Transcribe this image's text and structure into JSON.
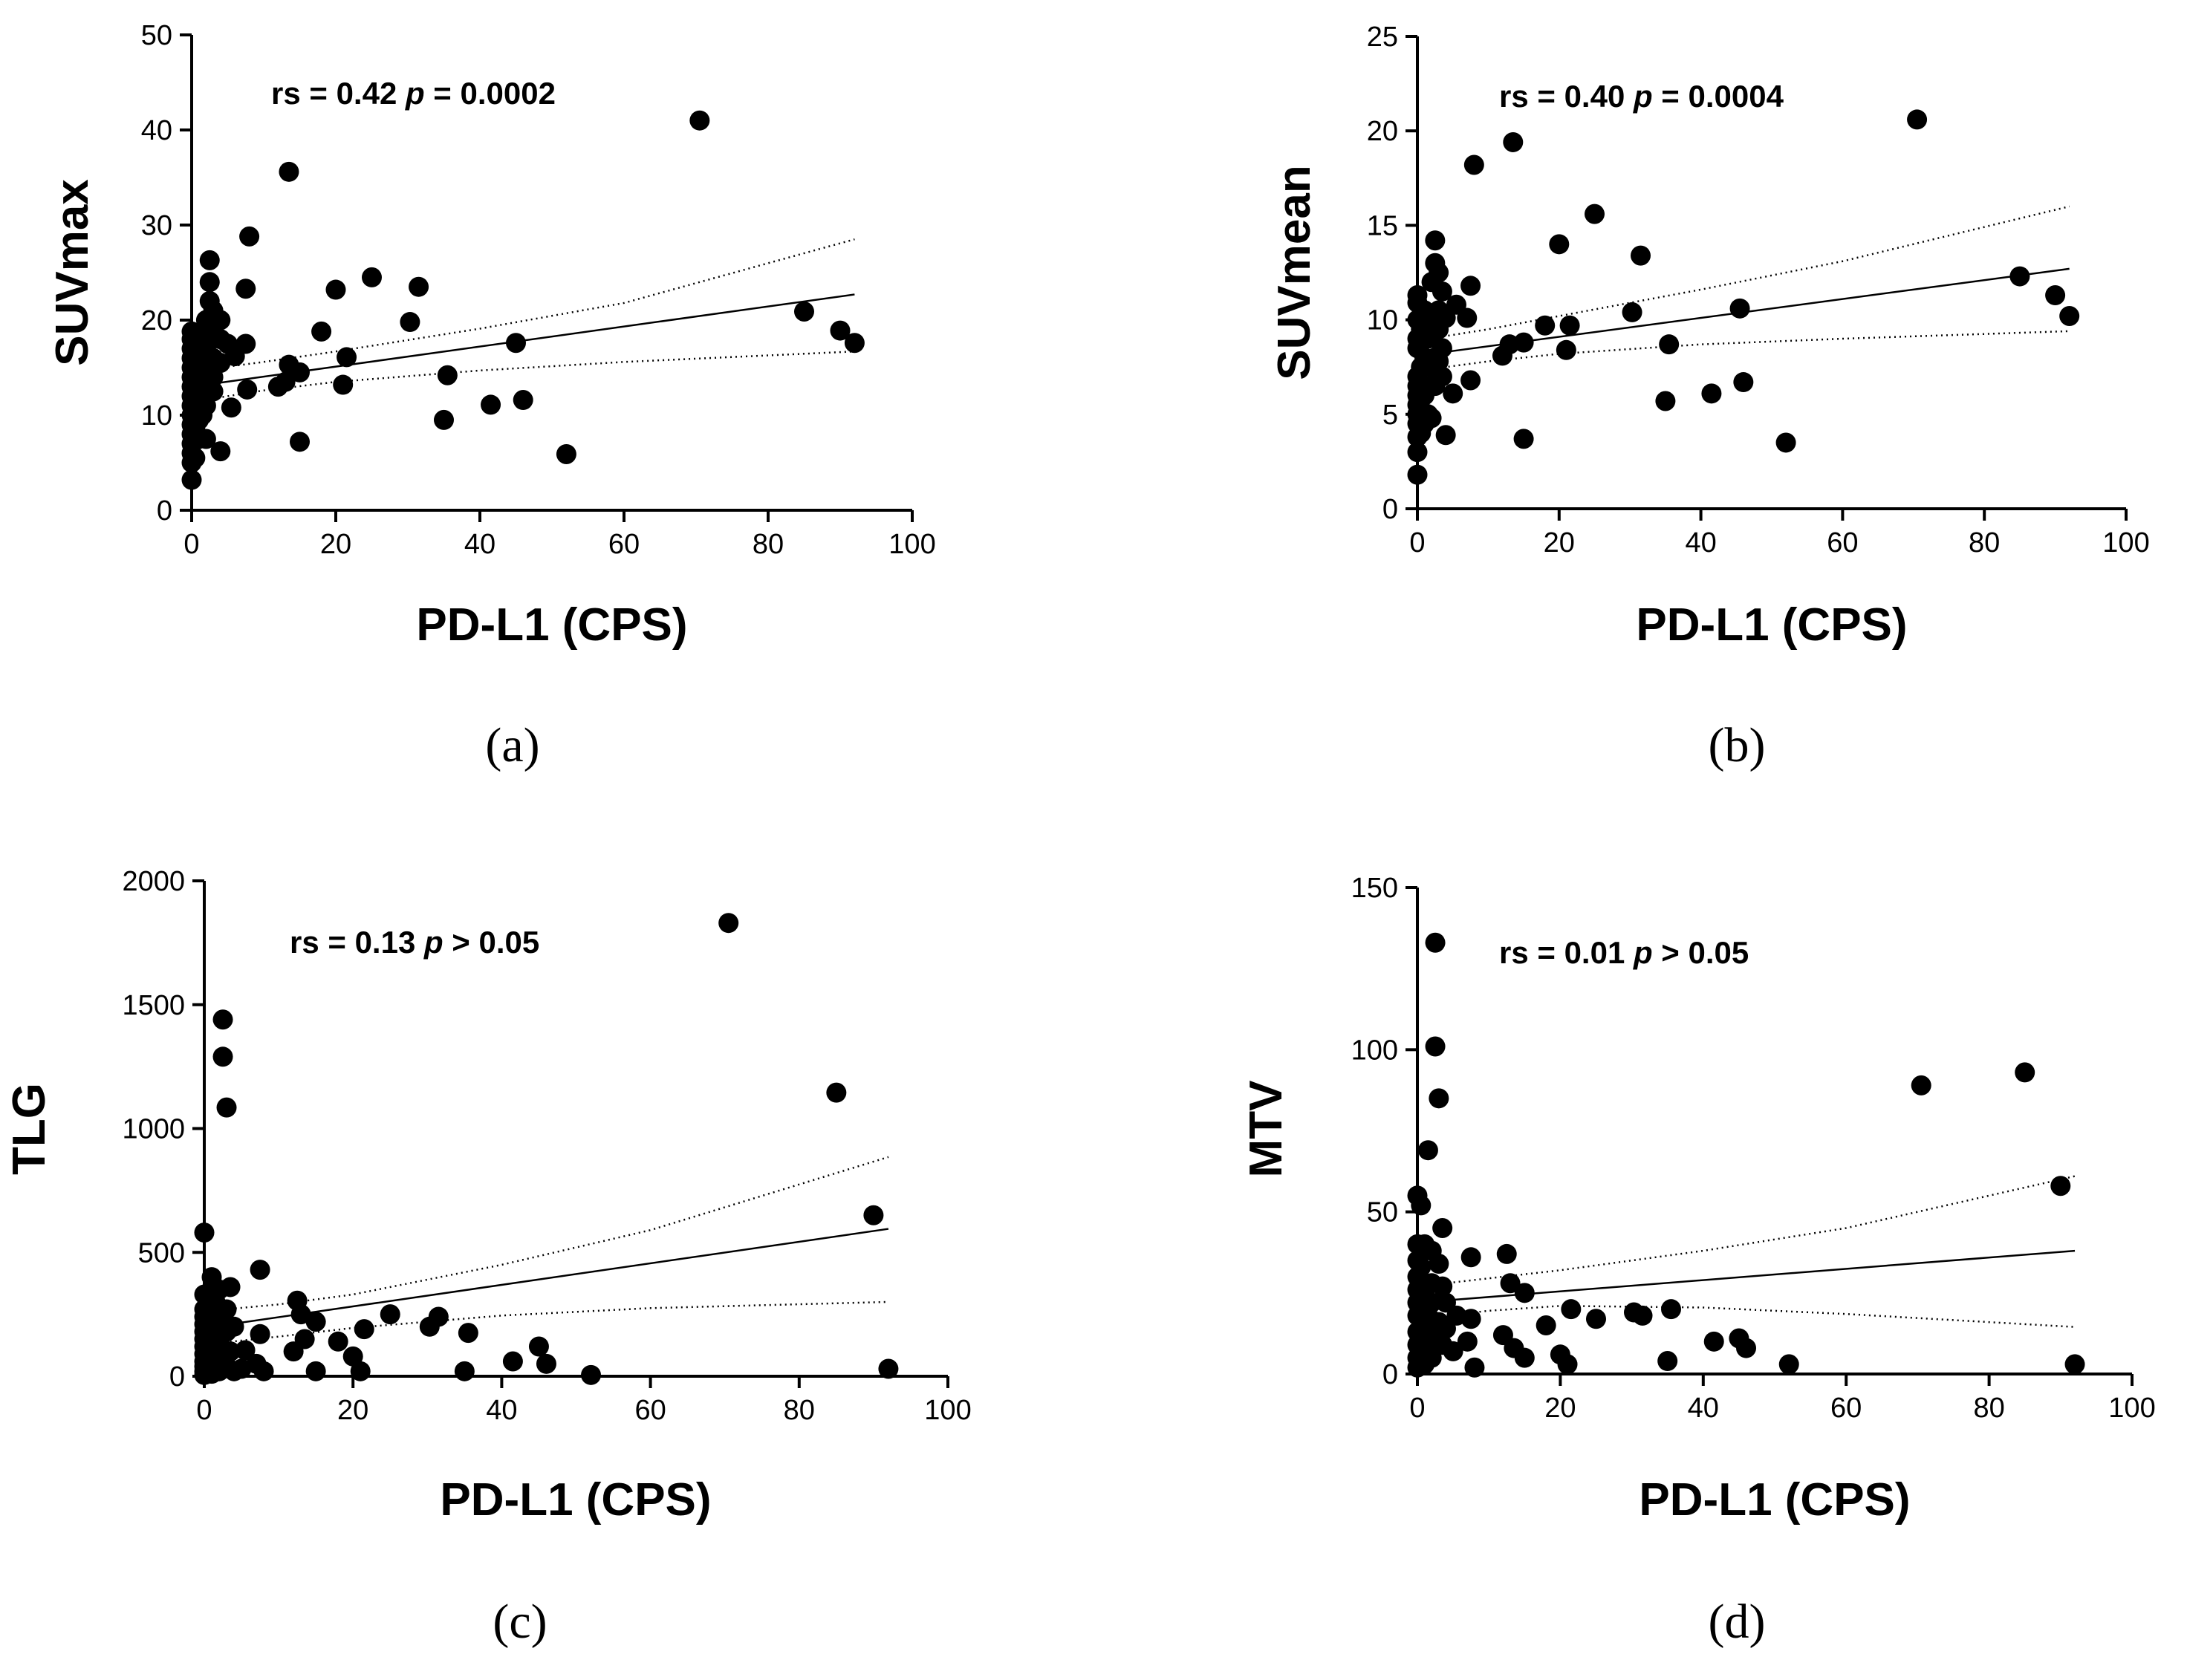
{
  "chart_data": [
    {
      "type": "scatter",
      "panel_label": "(a)",
      "xlabel": "PD-L1 (CPS)",
      "ylabel": "SUVmax",
      "xlim": [
        0,
        100
      ],
      "ylim": [
        0,
        50
      ],
      "xticks": [
        "0",
        "20",
        "40",
        "60",
        "80",
        "100"
      ],
      "yticks": [
        "0",
        "10",
        "20",
        "30",
        "40",
        "50"
      ],
      "stat": {
        "prefix": "rs = 0.42 ",
        "p_symbol": "p",
        "suffix": " = 0.0002"
      },
      "fit": {
        "x": [
          0,
          92
        ],
        "y": [
          13.0,
          22.7
        ]
      },
      "ci_upper": {
        "x": [
          0,
          10,
          20,
          40,
          60,
          92
        ],
        "y": [
          14.6,
          15.6,
          16.7,
          19.1,
          21.8,
          28.5
        ]
      },
      "ci_lower": {
        "x": [
          0,
          10,
          20,
          40,
          60,
          92
        ],
        "y": [
          11.4,
          12.6,
          13.5,
          14.7,
          15.6,
          16.7
        ]
      },
      "points": [
        [
          0,
          3.2
        ],
        [
          0,
          5.0
        ],
        [
          0,
          6.0
        ],
        [
          0,
          7.0
        ],
        [
          0,
          8.0
        ],
        [
          0,
          9.0
        ],
        [
          0,
          10.0
        ],
        [
          0,
          11.0
        ],
        [
          0,
          12.0
        ],
        [
          0,
          13.0
        ],
        [
          0,
          14.0
        ],
        [
          0,
          15.0
        ],
        [
          0,
          16.0
        ],
        [
          0,
          17.0
        ],
        [
          0,
          18.0
        ],
        [
          0,
          18.8
        ],
        [
          0.5,
          5.5
        ],
        [
          0.5,
          8.5
        ],
        [
          0.5,
          10.5
        ],
        [
          0.5,
          12.5
        ],
        [
          0.5,
          14.5
        ],
        [
          0.5,
          16.5
        ],
        [
          1,
          7.5
        ],
        [
          1,
          9.5
        ],
        [
          1,
          11.5
        ],
        [
          1,
          13.5
        ],
        [
          1,
          15.5
        ],
        [
          1,
          17.5
        ],
        [
          1.5,
          12.0
        ],
        [
          1.5,
          14.0
        ],
        [
          1.5,
          10.0
        ],
        [
          2,
          7.5
        ],
        [
          2,
          11.0
        ],
        [
          2,
          13.0
        ],
        [
          2,
          15.0
        ],
        [
          2,
          17.0
        ],
        [
          2,
          18.5
        ],
        [
          2,
          20.0
        ],
        [
          2.5,
          22.0
        ],
        [
          2.5,
          24.0
        ],
        [
          2.5,
          26.3
        ],
        [
          3,
          12.5
        ],
        [
          3,
          16.0
        ],
        [
          3,
          19.0
        ],
        [
          3,
          21.0
        ],
        [
          3,
          14.0
        ],
        [
          4,
          6.2
        ],
        [
          4,
          18.0
        ],
        [
          4,
          15.5
        ],
        [
          4,
          20.0
        ],
        [
          5,
          17.5
        ],
        [
          5.5,
          10.8
        ],
        [
          6,
          16.2
        ],
        [
          7.5,
          17.5
        ],
        [
          7.5,
          23.3
        ],
        [
          7.7,
          12.7
        ],
        [
          8,
          28.8
        ],
        [
          12,
          13.0
        ],
        [
          13,
          13.5
        ],
        [
          13.5,
          35.6
        ],
        [
          13.5,
          15.3
        ],
        [
          15,
          14.5
        ],
        [
          15,
          7.2
        ],
        [
          18,
          18.8
        ],
        [
          20,
          23.2
        ],
        [
          21,
          13.2
        ],
        [
          21.5,
          16.1
        ],
        [
          25,
          24.5
        ],
        [
          30.3,
          19.8
        ],
        [
          31.5,
          23.5
        ],
        [
          35,
          9.5
        ],
        [
          35.5,
          14.2
        ],
        [
          41.5,
          11.1
        ],
        [
          45,
          17.6
        ],
        [
          46,
          11.6
        ],
        [
          52,
          5.9
        ],
        [
          70.5,
          41.0
        ],
        [
          85,
          20.9
        ],
        [
          90,
          18.9
        ],
        [
          92,
          17.6
        ]
      ]
    },
    {
      "type": "scatter",
      "panel_label": "(b)",
      "xlabel": "PD-L1 (CPS)",
      "ylabel": "SUVmean",
      "xlim": [
        0,
        100
      ],
      "ylim": [
        0,
        25
      ],
      "xticks": [
        "0",
        "20",
        "40",
        "60",
        "80",
        "100"
      ],
      "yticks": [
        "0",
        "5",
        "10",
        "15",
        "20",
        "25"
      ],
      "stat": {
        "prefix": "rs = 0.40 ",
        "p_symbol": "p",
        "suffix": " = 0.0004"
      },
      "fit": {
        "x": [
          0,
          92
        ],
        "y": [
          8.1,
          12.7
        ]
      },
      "ci_upper": {
        "x": [
          0,
          10,
          20,
          40,
          60,
          92
        ],
        "y": [
          8.9,
          9.5,
          10.2,
          11.6,
          13.1,
          16.0
        ]
      },
      "ci_lower": {
        "x": [
          0,
          10,
          20,
          40,
          60,
          92
        ],
        "y": [
          7.3,
          7.8,
          8.2,
          8.7,
          9.0,
          9.4
        ]
      },
      "points": [
        [
          0,
          1.8
        ],
        [
          0,
          3.0
        ],
        [
          0,
          3.8
        ],
        [
          0,
          4.5
        ],
        [
          0,
          5.0
        ],
        [
          0,
          5.5
        ],
        [
          0,
          6.0
        ],
        [
          0,
          6.5
        ],
        [
          0,
          7.0
        ],
        [
          0,
          8.5
        ],
        [
          0,
          9.0
        ],
        [
          0,
          10.0
        ],
        [
          0,
          10.9
        ],
        [
          0,
          11.3
        ],
        [
          0.5,
          4.0
        ],
        [
          0.5,
          5.8
        ],
        [
          0.5,
          7.5
        ],
        [
          0.5,
          9.5
        ],
        [
          1,
          4.5
        ],
        [
          1,
          6.0
        ],
        [
          1,
          8.0
        ],
        [
          1,
          10.5
        ],
        [
          1.5,
          5.0
        ],
        [
          1.5,
          6.5
        ],
        [
          1.5,
          9.0
        ],
        [
          2,
          4.8
        ],
        [
          2,
          7.5
        ],
        [
          2,
          10.0
        ],
        [
          2,
          12.0
        ],
        [
          2.5,
          13.0
        ],
        [
          2.5,
          14.2
        ],
        [
          2.5,
          6.5
        ],
        [
          2.5,
          8.0
        ],
        [
          3,
          9.5
        ],
        [
          3,
          12.5
        ],
        [
          3,
          10.5
        ],
        [
          3,
          7.8
        ],
        [
          3.5,
          11.5
        ],
        [
          3.5,
          8.5
        ],
        [
          3.5,
          7.0
        ],
        [
          4,
          3.9
        ],
        [
          4,
          10.1
        ],
        [
          5,
          6.1
        ],
        [
          5.5,
          10.8
        ],
        [
          7,
          10.1
        ],
        [
          7.5,
          6.8
        ],
        [
          7.5,
          11.8
        ],
        [
          8,
          18.2
        ],
        [
          12,
          8.1
        ],
        [
          13,
          8.7
        ],
        [
          13.5,
          19.4
        ],
        [
          15,
          8.8
        ],
        [
          15,
          3.7
        ],
        [
          18,
          9.7
        ],
        [
          20,
          14.0
        ],
        [
          21,
          8.4
        ],
        [
          21.5,
          9.7
        ],
        [
          25,
          15.6
        ],
        [
          30.3,
          10.4
        ],
        [
          31.5,
          13.4
        ],
        [
          35,
          5.7
        ],
        [
          35.5,
          8.7
        ],
        [
          41.5,
          6.1
        ],
        [
          45.5,
          10.6
        ],
        [
          46,
          6.7
        ],
        [
          52,
          3.5
        ],
        [
          70.5,
          20.6
        ],
        [
          85,
          12.3
        ],
        [
          90,
          11.3
        ],
        [
          92,
          10.2
        ]
      ]
    },
    {
      "type": "scatter",
      "panel_label": "(c)",
      "xlabel": "PD-L1 (CPS)",
      "ylabel": "TLG",
      "xlim": [
        0,
        100
      ],
      "ylim": [
        0,
        2000
      ],
      "xticks": [
        "0",
        "20",
        "40",
        "60",
        "80",
        "100"
      ],
      "yticks": [
        "0",
        "500",
        "1000",
        "1500",
        "2000"
      ],
      "stat": {
        "prefix": "rs = 0.13 ",
        "p_symbol": "p",
        "suffix": " > 0.05"
      },
      "fit": {
        "x": [
          0,
          92
        ],
        "y": [
          195,
          595
        ]
      },
      "ci_upper": {
        "x": [
          0,
          10,
          20,
          40,
          60,
          92
        ],
        "y": [
          262,
          290,
          330,
          450,
          590,
          885
        ]
      },
      "ci_lower": {
        "x": [
          0,
          10,
          20,
          40,
          60,
          92
        ],
        "y": [
          128,
          160,
          195,
          245,
          275,
          300
        ]
      },
      "points": [
        [
          0,
          5
        ],
        [
          0,
          20
        ],
        [
          0,
          40
        ],
        [
          0,
          60
        ],
        [
          0,
          90
        ],
        [
          0,
          120
        ],
        [
          0,
          150
        ],
        [
          0,
          180
        ],
        [
          0,
          210
        ],
        [
          0,
          240
        ],
        [
          0,
          270
        ],
        [
          0,
          330
        ],
        [
          0,
          580
        ],
        [
          0.5,
          15
        ],
        [
          0.5,
          70
        ],
        [
          0.5,
          130
        ],
        [
          0.5,
          200
        ],
        [
          1,
          10
        ],
        [
          1,
          50
        ],
        [
          1,
          100
        ],
        [
          1,
          160
        ],
        [
          1,
          250
        ],
        [
          1,
          400
        ],
        [
          1.5,
          30
        ],
        [
          1.5,
          80
        ],
        [
          1.5,
          300
        ],
        [
          2,
          20
        ],
        [
          2,
          60
        ],
        [
          2,
          140
        ],
        [
          2,
          220
        ],
        [
          2,
          350
        ],
        [
          2.5,
          1440
        ],
        [
          2.5,
          1290
        ],
        [
          3,
          1085
        ],
        [
          3,
          40
        ],
        [
          3,
          180
        ],
        [
          3,
          270
        ],
        [
          3.5,
          100
        ],
        [
          3.5,
          360
        ],
        [
          4,
          20
        ],
        [
          4,
          200
        ],
        [
          5,
          30
        ],
        [
          5.5,
          105
        ],
        [
          7,
          50
        ],
        [
          7.5,
          430
        ],
        [
          7.5,
          170
        ],
        [
          8,
          20
        ],
        [
          12,
          100
        ],
        [
          12.5,
          305
        ],
        [
          13,
          250
        ],
        [
          13.5,
          150
        ],
        [
          15,
          20
        ],
        [
          15,
          220
        ],
        [
          18,
          140
        ],
        [
          20,
          80
        ],
        [
          21,
          20
        ],
        [
          21.5,
          190
        ],
        [
          25,
          250
        ],
        [
          30.3,
          200
        ],
        [
          31.5,
          240
        ],
        [
          35,
          20
        ],
        [
          35.5,
          175
        ],
        [
          41.5,
          60
        ],
        [
          45,
          120
        ],
        [
          46,
          50
        ],
        [
          52,
          5
        ],
        [
          70.5,
          1830
        ],
        [
          85,
          1145
        ],
        [
          90,
          650
        ],
        [
          92,
          30
        ]
      ]
    },
    {
      "type": "scatter",
      "panel_label": "(d)",
      "xlabel": "PD-L1 (CPS)",
      "ylabel": "MTV",
      "xlim": [
        0,
        100
      ],
      "ylim": [
        0,
        150
      ],
      "xticks": [
        "0",
        "20",
        "40",
        "60",
        "80",
        "100"
      ],
      "yticks": [
        "0",
        "50",
        "100",
        "150"
      ],
      "stat": {
        "prefix": "rs = 0.01 ",
        "p_symbol": "p",
        "suffix": " > 0.05"
      },
      "fit": {
        "x": [
          0,
          92
        ],
        "y": [
          22,
          38
        ]
      },
      "ci_upper": {
        "x": [
          0,
          10,
          20,
          40,
          60,
          92
        ],
        "y": [
          27,
          29.5,
          32,
          38,
          45,
          61
        ]
      },
      "ci_lower": {
        "x": [
          0,
          10,
          20,
          40,
          60,
          92
        ],
        "y": [
          17,
          19.5,
          21,
          20.5,
          18.5,
          14.5
        ]
      },
      "points": [
        [
          0,
          2
        ],
        [
          0,
          5
        ],
        [
          0,
          9
        ],
        [
          0,
          13
        ],
        [
          0,
          18
        ],
        [
          0,
          22
        ],
        [
          0,
          26
        ],
        [
          0,
          30
        ],
        [
          0,
          35
        ],
        [
          0,
          40
        ],
        [
          0,
          55
        ],
        [
          0.5,
          4
        ],
        [
          0.5,
          12
        ],
        [
          0.5,
          20
        ],
        [
          0.5,
          33
        ],
        [
          0.5,
          52
        ],
        [
          1,
          3
        ],
        [
          1,
          15
        ],
        [
          1,
          25
        ],
        [
          1,
          40
        ],
        [
          1.5,
          7
        ],
        [
          1.5,
          18
        ],
        [
          1.5,
          69
        ],
        [
          2,
          5
        ],
        [
          2,
          12
        ],
        [
          2,
          22
        ],
        [
          2,
          28
        ],
        [
          2,
          38
        ],
        [
          2.5,
          133
        ],
        [
          2.5,
          101
        ],
        [
          3,
          85
        ],
        [
          3,
          16
        ],
        [
          3,
          34
        ],
        [
          3.5,
          9
        ],
        [
          3.5,
          27
        ],
        [
          3.5,
          45
        ],
        [
          4,
          14
        ],
        [
          4,
          22
        ],
        [
          5,
          7
        ],
        [
          5.5,
          18
        ],
        [
          7,
          10
        ],
        [
          7.5,
          36
        ],
        [
          7.5,
          17
        ],
        [
          8,
          2
        ],
        [
          12,
          12
        ],
        [
          12.5,
          37
        ],
        [
          13,
          28
        ],
        [
          13.5,
          8
        ],
        [
          15,
          5
        ],
        [
          15,
          25
        ],
        [
          18,
          15
        ],
        [
          20,
          6
        ],
        [
          21,
          3
        ],
        [
          21.5,
          20
        ],
        [
          25,
          17
        ],
        [
          30.3,
          19
        ],
        [
          31.5,
          18
        ],
        [
          35,
          4
        ],
        [
          35.5,
          20
        ],
        [
          41.5,
          10
        ],
        [
          45,
          11
        ],
        [
          46,
          8
        ],
        [
          52,
          3
        ],
        [
          70.5,
          89
        ],
        [
          85,
          93
        ],
        [
          90,
          58
        ],
        [
          92,
          3
        ]
      ]
    }
  ]
}
